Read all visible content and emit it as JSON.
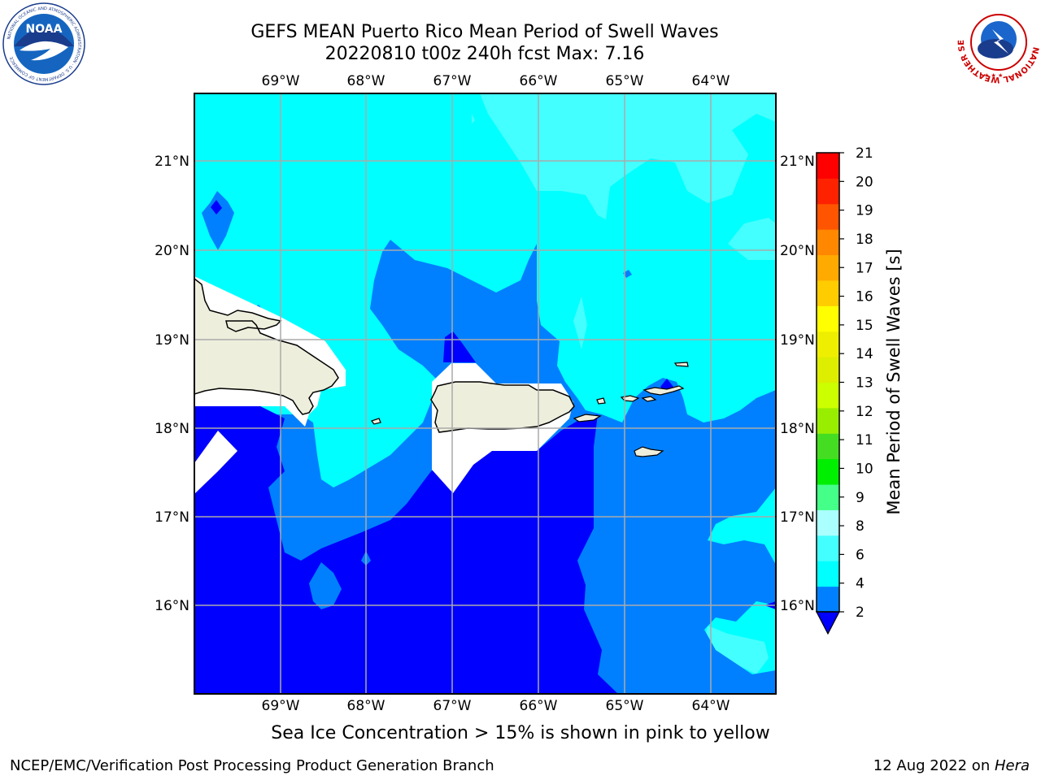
{
  "header": {
    "title_line1": "GEFS MEAN Puerto Rico Mean Period of Swell Waves",
    "title_line2": "20220810 t00z 240h fcst   Max: 7.16"
  },
  "logos": {
    "left": "NOAA",
    "left_ring_text": "NATIONAL OCEANIC AND ATMOSPHERIC ADMINISTRATION · U.S. DEPARTMENT OF COMMERCE",
    "right_ring_text": "NATIONAL WEATHER SERVICE"
  },
  "map": {
    "lon_labels": [
      "69°W",
      "68°W",
      "67°W",
      "66°W",
      "65°W",
      "64°W"
    ],
    "lat_labels": [
      "21°N",
      "20°N",
      "19°N",
      "18°N",
      "17°N",
      "16°N"
    ],
    "land_color": "#eeeedd",
    "masked_color": "#ffffff",
    "grid_color": "#aaaaaa",
    "legend_swatches": [
      {
        "range": "<2",
        "color": "#0000ff"
      },
      {
        "range": "2-4",
        "color": "#0080ff"
      },
      {
        "range": "4-6",
        "color": "#00ffff"
      },
      {
        "range": "6-8",
        "color": "#44ffff"
      }
    ]
  },
  "colorbar": {
    "label": "Mean Period of Swell Waves [s]",
    "ticks": [
      "2",
      "4",
      "6",
      "8",
      "9",
      "10",
      "11",
      "12",
      "13",
      "14",
      "15",
      "16",
      "17",
      "18",
      "19",
      "20",
      "21"
    ],
    "colors": [
      "#0080ff",
      "#00ffff",
      "#44ffff",
      "#aaffff",
      "#44ff88",
      "#00ee00",
      "#44dd22",
      "#99ee00",
      "#ccff00",
      "#ddee00",
      "#eeee00",
      "#ffff00",
      "#ffcc00",
      "#ffaa00",
      "#ff8800",
      "#ff5500",
      "#ff2200",
      "#ff0000"
    ],
    "extend_color": "#0000ff"
  },
  "footer": {
    "note": "Sea Ice Concentration > 15% is shown in pink to yellow",
    "left": "NCEP/EMC/Verification Post Processing Product Generation Branch",
    "right_prefix": "12 Aug 2022 on ",
    "right_host": "Hera"
  }
}
